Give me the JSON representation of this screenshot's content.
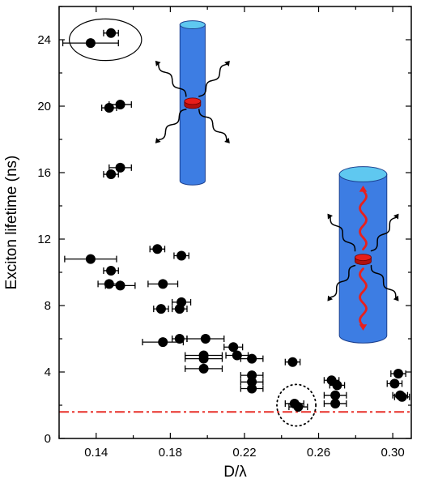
{
  "chart_data": {
    "type": "scatter",
    "xlabel": "D/λ",
    "ylabel": "Exciton lifetime (ns)",
    "xlim": [
      0.12,
      0.31
    ],
    "ylim": [
      0,
      26
    ],
    "xticks": [
      "0.14",
      "0.18",
      "0.22",
      "0.26",
      "0.30"
    ],
    "xtick_values": [
      0.14,
      0.18,
      0.22,
      0.26,
      0.3
    ],
    "yticks": [
      "0",
      "4",
      "8",
      "12",
      "16",
      "20",
      "24"
    ],
    "ytick_values": [
      0,
      4,
      8,
      12,
      16,
      20,
      24
    ],
    "reference_line": {
      "y": 1.6,
      "style": "dash-dot",
      "color": "#e8302a"
    },
    "marker_color": "#000000",
    "points": [
      {
        "x": 0.137,
        "y": 23.8,
        "xerr": 0.015
      },
      {
        "x": 0.148,
        "y": 24.4,
        "xerr": 0.004
      },
      {
        "x": 0.147,
        "y": 19.9,
        "xerr": 0.004
      },
      {
        "x": 0.153,
        "y": 20.1,
        "xerr": 0.006
      },
      {
        "x": 0.148,
        "y": 15.9,
        "xerr": 0.004
      },
      {
        "x": 0.153,
        "y": 16.3,
        "xerr": 0.006
      },
      {
        "x": 0.137,
        "y": 10.8,
        "xerr": 0.014
      },
      {
        "x": 0.148,
        "y": 10.1,
        "xerr": 0.004
      },
      {
        "x": 0.147,
        "y": 9.3,
        "xerr": 0.006
      },
      {
        "x": 0.153,
        "y": 9.2,
        "xerr": 0.008
      },
      {
        "x": 0.173,
        "y": 11.4,
        "xerr": 0.004
      },
      {
        "x": 0.186,
        "y": 11.0,
        "xerr": 0.004
      },
      {
        "x": 0.176,
        "y": 9.3,
        "xerr": 0.008
      },
      {
        "x": 0.175,
        "y": 7.8,
        "xerr": 0.004
      },
      {
        "x": 0.186,
        "y": 8.2,
        "xerr": 0.005
      },
      {
        "x": 0.185,
        "y": 7.8,
        "xerr": 0.004
      },
      {
        "x": 0.176,
        "y": 5.8,
        "xerr": 0.011
      },
      {
        "x": 0.185,
        "y": 6.0,
        "xerr": 0.004
      },
      {
        "x": 0.199,
        "y": 6.0,
        "xerr": 0.01
      },
      {
        "x": 0.198,
        "y": 5.0,
        "xerr": 0.01
      },
      {
        "x": 0.198,
        "y": 4.8,
        "xerr": 0.01
      },
      {
        "x": 0.198,
        "y": 4.2,
        "xerr": 0.01
      },
      {
        "x": 0.214,
        "y": 5.5,
        "xerr": 0.005
      },
      {
        "x": 0.216,
        "y": 5.0,
        "xerr": 0.006
      },
      {
        "x": 0.224,
        "y": 4.8,
        "xerr": 0.006
      },
      {
        "x": 0.224,
        "y": 3.8,
        "xerr": 0.006
      },
      {
        "x": 0.224,
        "y": 3.4,
        "xerr": 0.006
      },
      {
        "x": 0.224,
        "y": 3.0,
        "xerr": 0.006
      },
      {
        "x": 0.246,
        "y": 4.6,
        "xerr": 0.004
      },
      {
        "x": 0.247,
        "y": 2.1,
        "xerr": 0.005
      },
      {
        "x": 0.249,
        "y": 1.9,
        "xerr": 0.005
      },
      {
        "x": 0.267,
        "y": 3.5,
        "xerr": 0.004
      },
      {
        "x": 0.27,
        "y": 3.2,
        "xerr": 0.004
      },
      {
        "x": 0.269,
        "y": 2.6,
        "xerr": 0.006
      },
      {
        "x": 0.269,
        "y": 2.1,
        "xerr": 0.006
      },
      {
        "x": 0.303,
        "y": 3.9,
        "xerr": 0.004
      },
      {
        "x": 0.301,
        "y": 3.3,
        "xerr": 0.004
      },
      {
        "x": 0.304,
        "y": 2.6,
        "xerr": 0.004
      },
      {
        "x": 0.305,
        "y": 2.5,
        "xerr": 0.004
      }
    ],
    "annotations": [
      {
        "kind": "ellipse",
        "style": "solid",
        "cx": 0.145,
        "cy": 24.0,
        "rx": 0.0195,
        "ry": 1.25
      },
      {
        "kind": "ellipse",
        "style": "dotted",
        "cx": 0.248,
        "cy": 2.0,
        "rx": 0.0105,
        "ry": 1.25
      }
    ],
    "insets": [
      {
        "kind": "nanowire",
        "variant": "thin",
        "cx": 0.192,
        "top": 24.9,
        "bottom": 15.5,
        "half_width": 0.0068,
        "dot_y": 20.2,
        "guided_arrows": false
      },
      {
        "kind": "nanowire",
        "variant": "thick",
        "cx": 0.284,
        "top": 15.9,
        "bottom": 6.2,
        "half_width": 0.0128,
        "dot_y": 10.8,
        "guided_arrows": true
      }
    ]
  }
}
